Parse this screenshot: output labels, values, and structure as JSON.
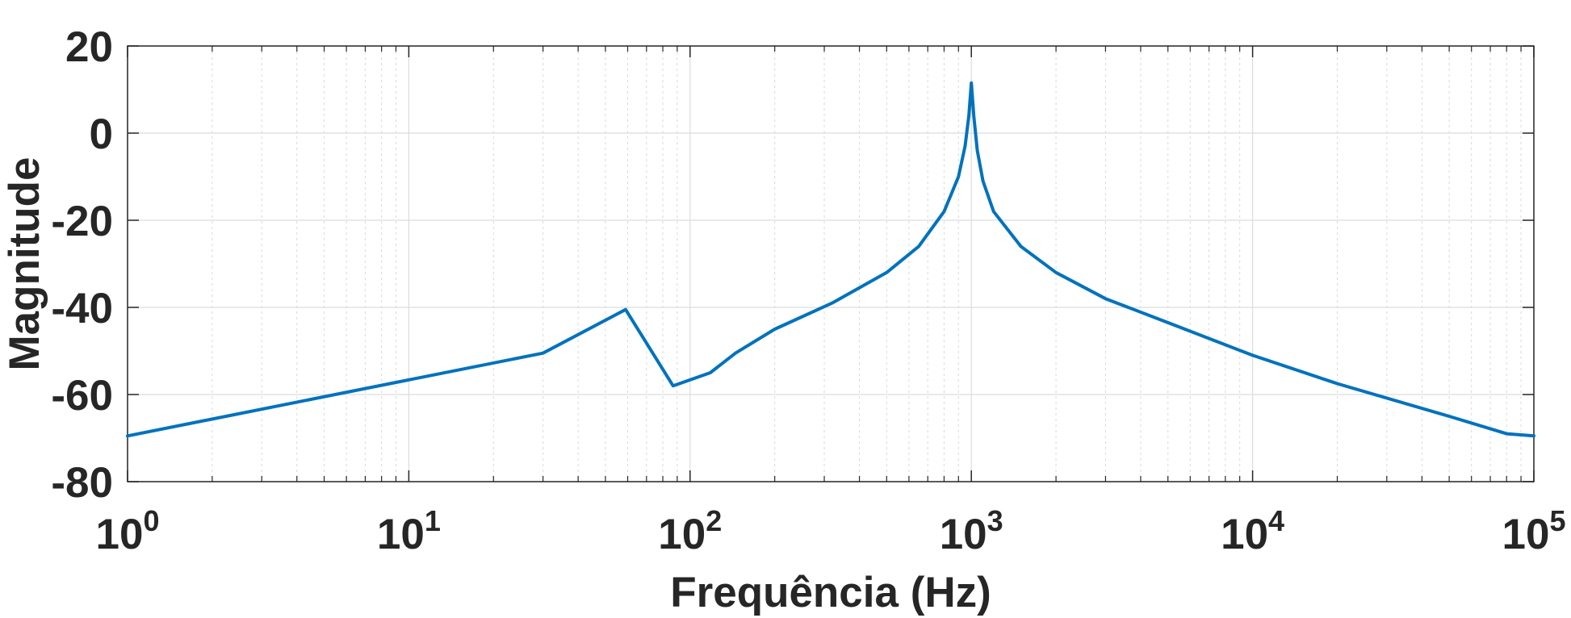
{
  "chart_data": {
    "type": "line",
    "title": "",
    "xlabel": "Frequência (Hz)",
    "ylabel": "Magnitude",
    "xscale": "log",
    "xlim": [
      1,
      100000
    ],
    "ylim": [
      -80,
      20
    ],
    "grid": true,
    "legend": "none",
    "yticks": [
      "20",
      "0",
      "-20",
      "-40",
      "-60",
      "-80"
    ],
    "xticks": [
      {
        "base": "10",
        "exp": "0"
      },
      {
        "base": "10",
        "exp": "1"
      },
      {
        "base": "10",
        "exp": "2"
      },
      {
        "base": "10",
        "exp": "3"
      },
      {
        "base": "10",
        "exp": "4"
      },
      {
        "base": "10",
        "exp": "5"
      }
    ],
    "line_color": "#0072BD",
    "series": [
      {
        "x": [
          1,
          30,
          59,
          87,
          118,
          145,
          200,
          320,
          500,
          650,
          800,
          900,
          950,
          980,
          1000,
          1020,
          1050,
          1100,
          1200,
          1500,
          2000,
          3000,
          5000,
          10000,
          20000,
          50000,
          80000,
          100000
        ],
        "y": [
          -69.5,
          -50.5,
          -40.5,
          -58,
          -55,
          -50.5,
          -45,
          -39,
          -32,
          -26,
          -18,
          -10,
          -3,
          4,
          11.5,
          4,
          -4,
          -11,
          -18,
          -26,
          -32,
          -38,
          -43.5,
          -51,
          -57.5,
          -65,
          -69,
          -69.5
        ]
      }
    ]
  }
}
